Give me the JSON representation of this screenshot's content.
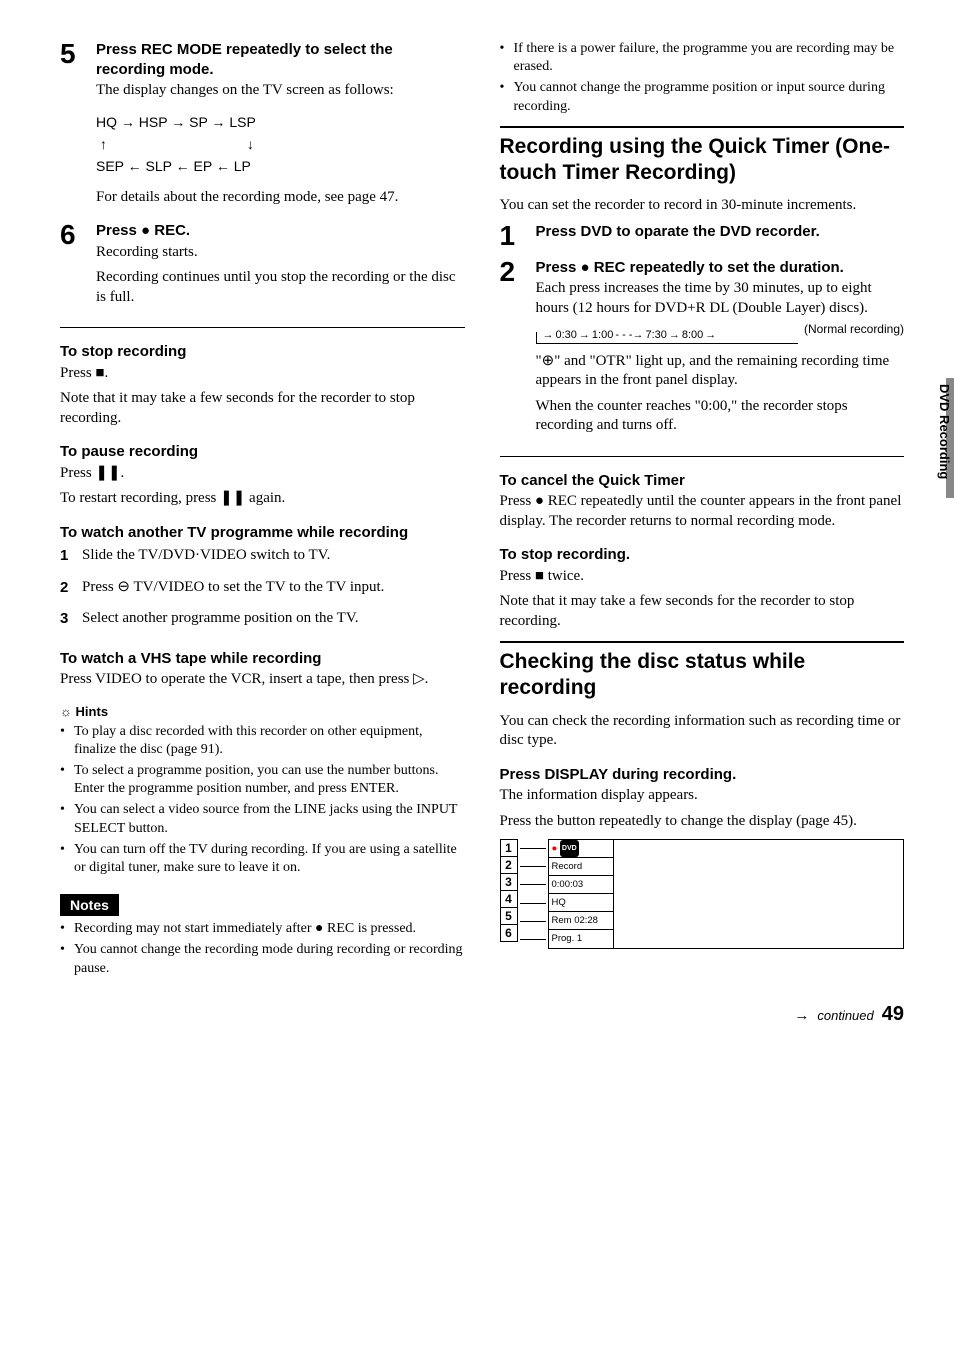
{
  "left": {
    "step5": {
      "num": "5",
      "head": "Press REC MODE repeatedly to select the recording mode.",
      "body": "The display changes on the TV screen as follows:",
      "diagram_top": [
        "HQ",
        "HSP",
        "SP",
        "LSP"
      ],
      "diagram_bot": [
        "SEP",
        "SLP",
        "EP",
        "LP"
      ],
      "after": "For details about the recording mode, see page 47."
    },
    "step6": {
      "num": "6",
      "head": "Press ● REC.",
      "body1": "Recording starts.",
      "body2": "Recording continues until you stop the recording or the disc is full."
    },
    "stop": {
      "head": "To stop recording",
      "l1": "Press ■.",
      "l2": "Note that it may take a few seconds for the recorder to stop recording."
    },
    "pause": {
      "head": "To pause recording",
      "l1": "Press ❚❚.",
      "l2": "To restart recording, press ❚❚ again."
    },
    "watch_tv": {
      "head": "To watch another TV programme while recording",
      "items": [
        "Slide the TV/DVD·VIDEO switch to TV.",
        "Press ⊖ TV/VIDEO to set the TV to the TV input.",
        "Select another programme position on the TV."
      ]
    },
    "watch_vhs": {
      "head": "To watch a VHS tape while recording",
      "body": "Press VIDEO to operate the VCR, insert a tape, then press ▷."
    },
    "hints": {
      "head": "Hints",
      "items": [
        "To play a disc recorded with this recorder on other equipment, finalize the disc (page 91).",
        "To select a programme position, you can use the number buttons. Enter the programme position number, and press ENTER.",
        "You can select a video source from the LINE jacks using the INPUT SELECT button.",
        "You can turn off the TV during recording. If you are using a satellite or digital tuner, make sure to leave it on."
      ]
    },
    "notes": {
      "head": "Notes",
      "items": [
        "Recording may not start immediately after ● REC is pressed.",
        "You cannot change the recording mode during recording or recording pause."
      ]
    }
  },
  "right": {
    "top_bullets": [
      "If there is a power failure, the programme you are recording may be erased.",
      "You cannot change the programme position or input source during recording."
    ],
    "quick": {
      "title": "Recording using the Quick Timer (One-touch Timer Recording)",
      "intro": "You can set the recorder to record in 30-minute increments.",
      "step1": {
        "num": "1",
        "head": "Press DVD to oparate the DVD recorder."
      },
      "step2": {
        "num": "2",
        "head": "Press ● REC repeatedly to set the duration.",
        "body": "Each press increases the time by 30 minutes, up to eight hours (12 hours for DVD+R DL (Double Layer) discs)."
      },
      "timeline": [
        "0:30",
        "1:00",
        "7:30",
        "8:00"
      ],
      "timeline_label": "(Normal recording)",
      "after1": "\"⊕\" and \"OTR\" light up, and the remaining recording time appears in the front panel display.",
      "after2": "When the counter reaches \"0:00,\" the recorder stops recording and turns off."
    },
    "cancel": {
      "head": "To cancel the Quick Timer",
      "body": "Press ● REC repeatedly until the counter appears in the front panel display. The recorder returns to normal recording mode."
    },
    "stop2": {
      "head": "To stop recording.",
      "l1": "Press ■ twice.",
      "l2": "Note that it may take a few seconds for the recorder to stop recording."
    },
    "checking": {
      "title": "Checking the disc status while recording",
      "intro": "You can check the recording information such as recording time or disc type.",
      "head": "Press DISPLAY during recording.",
      "b1": "The information display appears.",
      "b2": "Press the button repeatedly to change the display (page 45)."
    },
    "panel": {
      "labels": [
        "1",
        "2",
        "3",
        "4",
        "5",
        "6"
      ],
      "cells": [
        "",
        "Record",
        "0:00:03",
        "HQ",
        "Rem 02:28",
        "Prog. 1"
      ]
    }
  },
  "side_tab": "DVD Recording",
  "footer": {
    "continued": "continued",
    "page": "49"
  }
}
